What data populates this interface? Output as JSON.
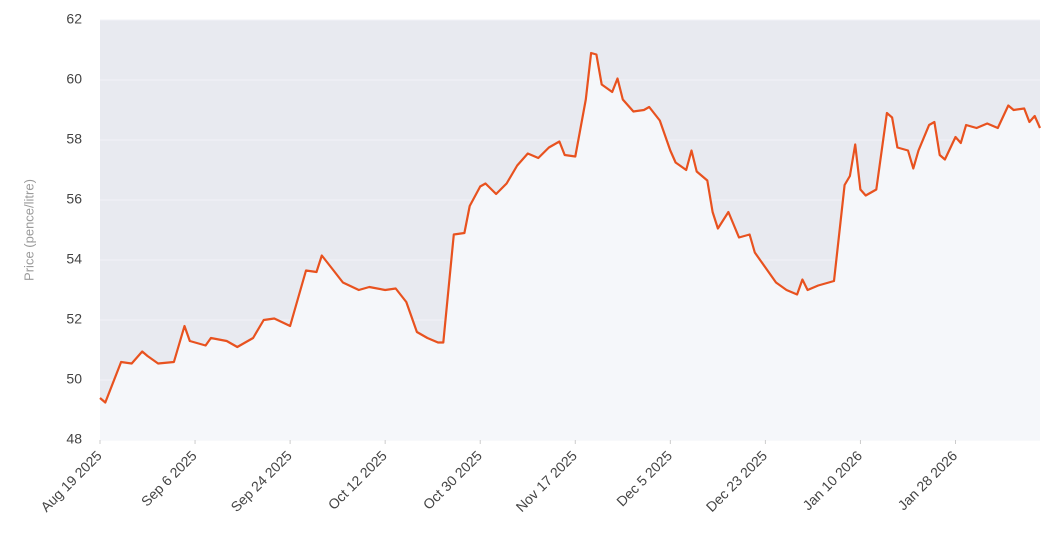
{
  "chart_data": {
    "type": "line",
    "y_label": "Price (pence/litre)",
    "x": [
      "2025-08-19",
      "2025-08-20",
      "2025-08-23",
      "2025-08-25",
      "2025-08-27",
      "2025-08-28",
      "2025-08-30",
      "2025-09-02",
      "2025-09-04",
      "2025-09-05",
      "2025-09-08",
      "2025-09-09",
      "2025-09-12",
      "2025-09-14",
      "2025-09-17",
      "2025-09-19",
      "2025-09-21",
      "2025-09-24",
      "2025-09-27",
      "2025-09-29",
      "2025-09-30",
      "2025-10-02",
      "2025-10-04",
      "2025-10-07",
      "2025-10-09",
      "2025-10-12",
      "2025-10-14",
      "2025-10-16",
      "2025-10-18",
      "2025-10-20",
      "2025-10-22",
      "2025-10-23",
      "2025-10-25",
      "2025-10-27",
      "2025-10-28",
      "2025-10-30",
      "2025-10-31",
      "2025-11-02",
      "2025-11-04",
      "2025-11-06",
      "2025-11-08",
      "2025-11-10",
      "2025-11-12",
      "2025-11-14",
      "2025-11-15",
      "2025-11-17",
      "2025-11-19",
      "2025-11-20",
      "2025-11-21",
      "2025-11-22",
      "2025-11-24",
      "2025-11-25",
      "2025-11-26",
      "2025-11-28",
      "2025-11-30",
      "2025-12-01",
      "2025-12-03",
      "2025-12-05",
      "2025-12-06",
      "2025-12-08",
      "2025-12-09",
      "2025-12-10",
      "2025-12-12",
      "2025-12-13",
      "2025-12-14",
      "2025-12-16",
      "2025-12-18",
      "2025-12-20",
      "2025-12-21",
      "2025-12-23",
      "2025-12-25",
      "2025-12-27",
      "2025-12-29",
      "2025-12-30",
      "2025-12-31",
      "2026-01-02",
      "2026-01-04",
      "2026-01-05",
      "2026-01-07",
      "2026-01-08",
      "2026-01-09",
      "2026-01-10",
      "2026-01-11",
      "2026-01-13",
      "2026-01-15",
      "2026-01-16",
      "2026-01-17",
      "2026-01-19",
      "2026-01-20",
      "2026-01-21",
      "2026-01-23",
      "2026-01-24",
      "2026-01-25",
      "2026-01-26",
      "2026-01-28",
      "2026-01-29",
      "2026-01-30",
      "2026-02-01",
      "2026-02-03",
      "2026-02-05",
      "2026-02-07",
      "2026-02-08",
      "2026-02-10",
      "2026-02-11",
      "2026-02-12",
      "2026-02-13"
    ],
    "series": [
      {
        "color": "#e8521f",
        "values": [
          49.4,
          49.25,
          50.6,
          50.55,
          50.95,
          50.8,
          50.55,
          50.6,
          51.8,
          51.3,
          51.15,
          51.4,
          51.3,
          51.1,
          51.4,
          52.0,
          52.05,
          51.8,
          53.65,
          53.6,
          54.15,
          53.7,
          53.25,
          53.0,
          53.1,
          53.0,
          53.05,
          52.6,
          51.6,
          51.4,
          51.25,
          51.25,
          54.85,
          54.9,
          55.8,
          56.45,
          56.55,
          56.2,
          56.55,
          57.15,
          57.55,
          57.4,
          57.75,
          57.95,
          57.5,
          57.45,
          59.35,
          60.9,
          60.85,
          59.85,
          59.6,
          60.05,
          59.35,
          58.95,
          59.0,
          59.1,
          58.65,
          57.65,
          57.25,
          57.0,
          57.65,
          56.95,
          56.65,
          55.6,
          55.05,
          55.6,
          54.75,
          54.85,
          54.25,
          53.75,
          53.25,
          53.0,
          52.85,
          53.35,
          53.0,
          53.15,
          53.25,
          53.3,
          56.5,
          56.8,
          57.85,
          56.35,
          56.15,
          56.35,
          58.9,
          58.75,
          57.75,
          57.65,
          57.05,
          57.65,
          58.5,
          58.6,
          57.5,
          57.35,
          58.1,
          57.9,
          58.5,
          58.4,
          58.55,
          58.4,
          59.15,
          59.0,
          59.05,
          58.6,
          58.8,
          58.4
        ]
      }
    ],
    "xlim": [
      "2025-08-19",
      "2026-02-13"
    ],
    "xticks": [
      {
        "value": "2025-08-19",
        "label": "Aug 19 2025"
      },
      {
        "value": "2025-09-06",
        "label": "Sep 6 2025"
      },
      {
        "value": "2025-09-24",
        "label": "Sep 24 2025"
      },
      {
        "value": "2025-10-12",
        "label": "Oct 12 2025"
      },
      {
        "value": "2025-10-30",
        "label": "Oct 30 2025"
      },
      {
        "value": "2025-11-17",
        "label": "Nov 17 2025"
      },
      {
        "value": "2025-12-05",
        "label": "Dec 5 2025"
      },
      {
        "value": "2025-12-23",
        "label": "Dec 23 2025"
      },
      {
        "value": "2026-01-10",
        "label": "Jan 10 2026"
      },
      {
        "value": "2026-01-28",
        "label": "Jan 28 2026"
      }
    ],
    "ylim": [
      48,
      62
    ],
    "yticks": [
      48,
      50,
      52,
      54,
      56,
      58,
      60,
      62
    ],
    "grid": true
  }
}
